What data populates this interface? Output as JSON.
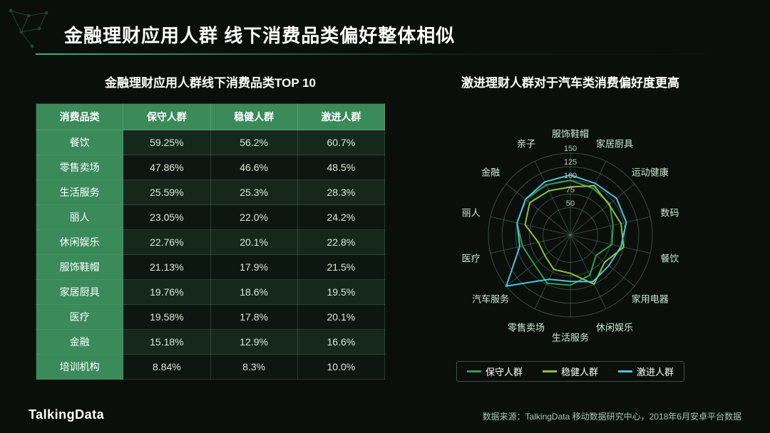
{
  "page_title": "金融理财应用人群 线下消费品类偏好整体相似",
  "brand": "TalkingData",
  "source_note": "数据来源：TalkingData 移动数据研究中心，2018年6月安卓平台数据",
  "colors": {
    "background": "#0a0f0c",
    "accent": "#3cb371",
    "table_header_bg": "#3a8a5a",
    "row_alt_bg": "rgba(70,140,95,0.2)",
    "grid_line": "#6a8a76",
    "text": "#ffffff",
    "label_text": "#cfe8d8"
  },
  "table": {
    "title": "金融理财应用人群线下消费品类TOP 10",
    "columns": [
      "消费品类",
      "保守人群",
      "稳健人群",
      "激进人群"
    ],
    "rows": [
      [
        "餐饮",
        "59.25%",
        "56.2%",
        "60.7%"
      ],
      [
        "零售卖场",
        "47.86%",
        "46.6%",
        "48.5%"
      ],
      [
        "生活服务",
        "25.59%",
        "25.3%",
        "28.3%"
      ],
      [
        "丽人",
        "23.05%",
        "22.0%",
        "24.2%"
      ],
      [
        "休闲娱乐",
        "22.76%",
        "20.1%",
        "22.8%"
      ],
      [
        "服饰鞋帽",
        "21.13%",
        "17.9%",
        "21.5%"
      ],
      [
        "家居厨具",
        "19.76%",
        "18.6%",
        "19.5%"
      ],
      [
        "医疗",
        "19.58%",
        "17.8%",
        "20.1%"
      ],
      [
        "金融",
        "15.18%",
        "12.9%",
        "16.6%"
      ],
      [
        "培训机构",
        "8.84%",
        "8.3%",
        "10.0%"
      ]
    ]
  },
  "radar": {
    "title": "激进理财人群对于汽车类消费偏好度更高",
    "ring_labels": [
      "50",
      "75",
      "100",
      "125",
      "150"
    ],
    "ring_values": [
      50,
      75,
      100,
      125,
      150
    ],
    "max_value": 150,
    "axes": [
      "服饰鞋帽",
      "家居厨具",
      "运动健康",
      "数码",
      "餐饮",
      "家用电器",
      "休闲娱乐",
      "生活服务",
      "零售卖场",
      "汽车服务",
      "医疗",
      "丽人",
      "金融",
      "亲子"
    ],
    "series": [
      {
        "name": "保守人群",
        "color": "#2e9e4f",
        "values": [
          100,
          95,
          92,
          80,
          78,
          60,
          82,
          92,
          98,
          85,
          90,
          100,
          105,
          102
        ]
      },
      {
        "name": "稳健人群",
        "color": "#8fbf3f",
        "values": [
          88,
          100,
          90,
          95,
          100,
          80,
          100,
          70,
          70,
          60,
          60,
          85,
          95,
          90
        ]
      },
      {
        "name": "激进人群",
        "color": "#4fc3d9",
        "values": [
          110,
          105,
          108,
          105,
          95,
          90,
          95,
          85,
          90,
          150,
          95,
          100,
          105,
          108
        ]
      }
    ]
  }
}
